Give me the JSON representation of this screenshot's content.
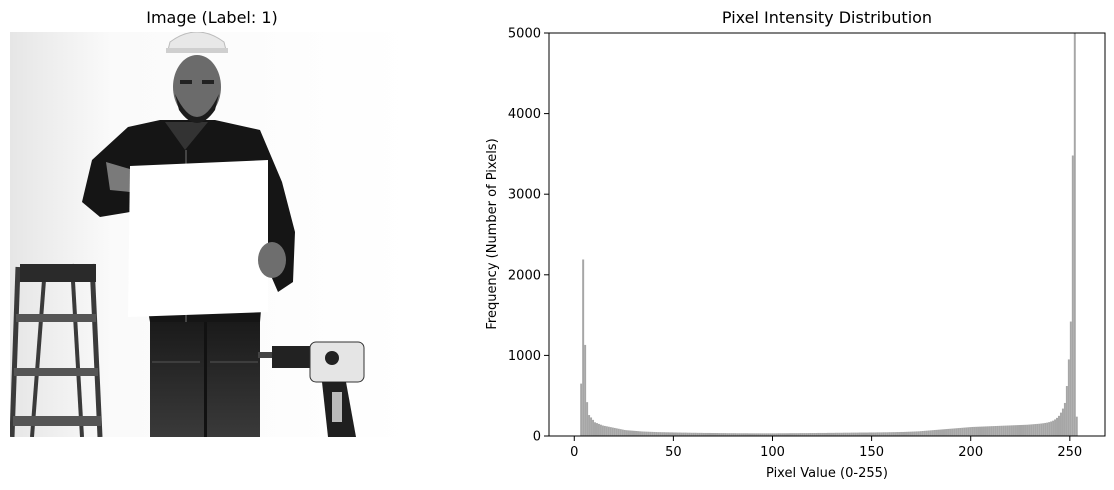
{
  "left_panel": {
    "title": "Image (Label: 1)"
  },
  "chart_data": {
    "type": "bar",
    "title": "Pixel Intensity Distribution",
    "xlabel": "Pixel Value (0-255)",
    "ylabel": "Frequency (Number of Pixels)",
    "xlim": [
      -12.75,
      267.75
    ],
    "ylim": [
      0,
      5000
    ],
    "x_ticks": [
      0,
      50,
      100,
      150,
      200,
      250
    ],
    "y_ticks": [
      0,
      1000,
      2000,
      3000,
      4000,
      5000
    ],
    "bar_color": "#a6a6a6",
    "bins": 256,
    "values": [
      0,
      0,
      0,
      650,
      2190,
      1130,
      420,
      260,
      230,
      200,
      170,
      160,
      150,
      140,
      130,
      125,
      120,
      115,
      110,
      105,
      100,
      95,
      90,
      85,
      80,
      75,
      72,
      70,
      68,
      66,
      64,
      62,
      60,
      58,
      56,
      55,
      54,
      53,
      52,
      51,
      50,
      49,
      48,
      48,
      47,
      47,
      46,
      46,
      45,
      45,
      44,
      44,
      43,
      43,
      42,
      42,
      42,
      41,
      41,
      40,
      40,
      40,
      39,
      39,
      39,
      38,
      38,
      38,
      38,
      37,
      37,
      37,
      37,
      36,
      36,
      36,
      36,
      35,
      35,
      35,
      35,
      35,
      34,
      34,
      34,
      34,
      34,
      34,
      33,
      33,
      33,
      33,
      33,
      33,
      33,
      33,
      33,
      33,
      33,
      33,
      33,
      33,
      33,
      34,
      34,
      34,
      34,
      34,
      34,
      35,
      35,
      35,
      35,
      35,
      36,
      36,
      36,
      36,
      36,
      37,
      37,
      37,
      37,
      38,
      38,
      38,
      38,
      38,
      39,
      39,
      39,
      39,
      40,
      40,
      40,
      40,
      41,
      41,
      41,
      41,
      42,
      42,
      42,
      42,
      43,
      43,
      43,
      43,
      43,
      44,
      44,
      44,
      44,
      45,
      45,
      45,
      46,
      46,
      46,
      47,
      47,
      48,
      48,
      49,
      49,
      50,
      50,
      51,
      52,
      53,
      54,
      55,
      56,
      57,
      58,
      60,
      62,
      64,
      66,
      68,
      70,
      72,
      74,
      76,
      78,
      80,
      82,
      84,
      86,
      88,
      90,
      92,
      94,
      96,
      98,
      100,
      102,
      104,
      106,
      108,
      110,
      112,
      113,
      114,
      115,
      116,
      117,
      118,
      119,
      120,
      121,
      122,
      123,
      124,
      125,
      126,
      127,
      128,
      129,
      130,
      131,
      132,
      133,
      134,
      135,
      136,
      137,
      138,
      139,
      140,
      142,
      144,
      146,
      148,
      150,
      152,
      155,
      158,
      162,
      166,
      172,
      180,
      190,
      205,
      225,
      250,
      290,
      340,
      410,
      620,
      950,
      1420,
      3480,
      5000,
      240,
      0
    ],
    "bar_outlier_color": "#a6a6a6"
  }
}
